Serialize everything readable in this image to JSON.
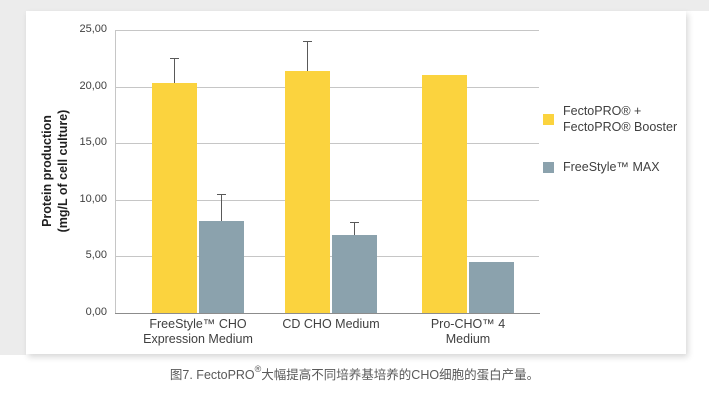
{
  "chart_data": {
    "type": "bar",
    "title": "",
    "ylabel_lines": [
      "Protein production",
      "(mg/L of cell culture)"
    ],
    "ylim": [
      0,
      25
    ],
    "grid": true,
    "legend_position": "right",
    "y_ticks": [
      {
        "label": "25,00",
        "value": 25
      },
      {
        "label": "20,00",
        "value": 20
      },
      {
        "label": "15,00",
        "value": 15
      },
      {
        "label": "10,00",
        "value": 10
      },
      {
        "label": "5,00",
        "value": 5
      },
      {
        "label": "0,00",
        "value": 0
      }
    ],
    "categories": [
      {
        "lines": [
          "FreeStyle™ CHO",
          "Expression Medium"
        ]
      },
      {
        "lines": [
          "CD CHO Medium"
        ]
      },
      {
        "lines": [
          "Pro-CHO™ 4",
          "Medium"
        ]
      }
    ],
    "series": [
      {
        "name_lines": [
          "FectoPRO® +",
          "FectoPRO® Booster"
        ],
        "color": "#FBD33E",
        "values": [
          20.3,
          21.4,
          21.0
        ],
        "error_plus": [
          2.2,
          2.6,
          0
        ]
      },
      {
        "name_lines": [
          "FreeStyle™ MAX"
        ],
        "color": "#8BA2AD",
        "values": [
          8.1,
          6.9,
          4.5
        ],
        "error_plus": [
          2.4,
          1.1,
          0
        ]
      }
    ]
  },
  "caption": {
    "prefix": "图7. FectoPRO",
    "sup": "®",
    "text": "大幅提高不同培养基培养的CHO细胞的蛋白产量。"
  },
  "colors": {
    "grid": "#c6c6c6",
    "axis": "#8c8c8c",
    "error": "#595959",
    "tick_text": "#404040",
    "caption_text": "#595959",
    "backdrop": "#ececec",
    "card_bg": "#ffffff"
  }
}
